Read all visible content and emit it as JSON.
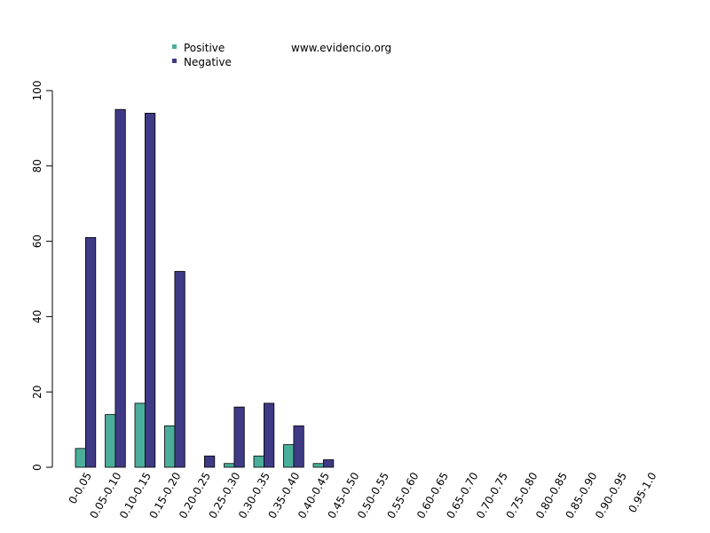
{
  "watermark": "www.evidencio.org",
  "chart_data": {
    "type": "bar",
    "categories": [
      "0-0.05",
      "0.05-0.10",
      "0.10-0.15",
      "0.15-0.20",
      "0.20-0.25",
      "0.25-0.30",
      "0.30-0.35",
      "0.35-0.40",
      "0.40-0.45",
      "0.45-0.50",
      "0.50-0.55",
      "0.55-0.60",
      "0.60-0.65",
      "0.65-0.70",
      "0.70-0.75",
      "0.75-0.80",
      "0.80-0.85",
      "0.85-0.90",
      "0.90-0.95",
      "0.95-1.0"
    ],
    "series": [
      {
        "name": "Positive",
        "color": "#4aae9b",
        "values": [
          5,
          14,
          17,
          11,
          0,
          1,
          3,
          6,
          1,
          0,
          0,
          0,
          0,
          0,
          0,
          0,
          0,
          0,
          0,
          0
        ]
      },
      {
        "name": "Negative",
        "color": "#3f3a85",
        "values": [
          61,
          95,
          94,
          52,
          3,
          16,
          17,
          11,
          2,
          0,
          0,
          0,
          0,
          0,
          0,
          0,
          0,
          0,
          0,
          0
        ]
      }
    ],
    "ylim": [
      0,
      100
    ],
    "yticks": [
      0,
      20,
      40,
      60,
      80,
      100
    ],
    "legend_position": "top-left",
    "grid": false
  }
}
